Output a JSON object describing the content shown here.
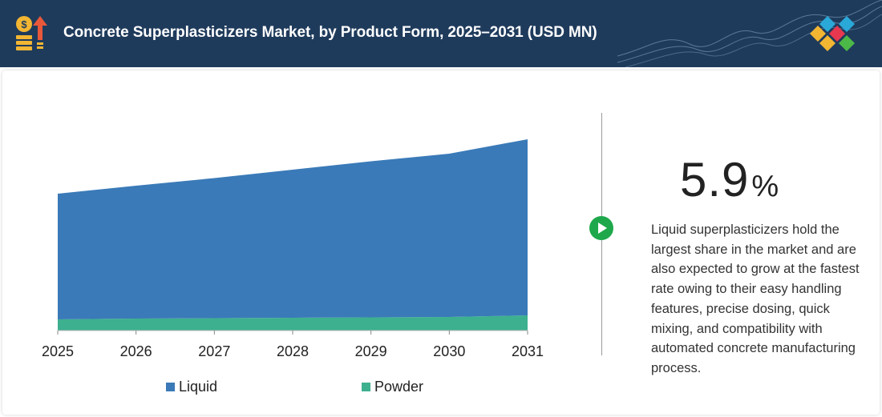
{
  "header": {
    "title": "Concrete Superplasticizers Market, by Product Form, 2025–2031 (USD MN)"
  },
  "stat": {
    "value": "5.9",
    "unit": "%",
    "description": "Liquid superplasticizers hold the largest share in the market and are also expected to grow at the fastest rate owing to their easy handling features, precise dosing, quick mixing, and compatibility with automated concrete manufacturing process."
  },
  "colors": {
    "header_bg": "#1f3b5c",
    "liquid": "#3a7ab8",
    "powder": "#3db08f",
    "play": "#1ea84b"
  },
  "icons": {
    "header": "coin-stack-up-arrow-icon",
    "play": "play-icon",
    "logo": "brand-diamonds-logo"
  },
  "chart_data": {
    "type": "area",
    "stacked": true,
    "x": [
      "2025",
      "2026",
      "2027",
      "2028",
      "2029",
      "2030",
      "2031"
    ],
    "series": [
      {
        "name": "Powder",
        "color": "#3db08f",
        "values": [
          14,
          15,
          15.5,
          16,
          16.5,
          17,
          19
        ]
      },
      {
        "name": "Liquid",
        "color": "#3a7ab8",
        "values": [
          157,
          166,
          175,
          185,
          195,
          204,
          220
        ]
      }
    ],
    "ylim": [
      0,
      250
    ],
    "yaxis_visible": false,
    "grid": false,
    "legend": [
      "Liquid",
      "Powder"
    ],
    "legend_position": "bottom"
  }
}
